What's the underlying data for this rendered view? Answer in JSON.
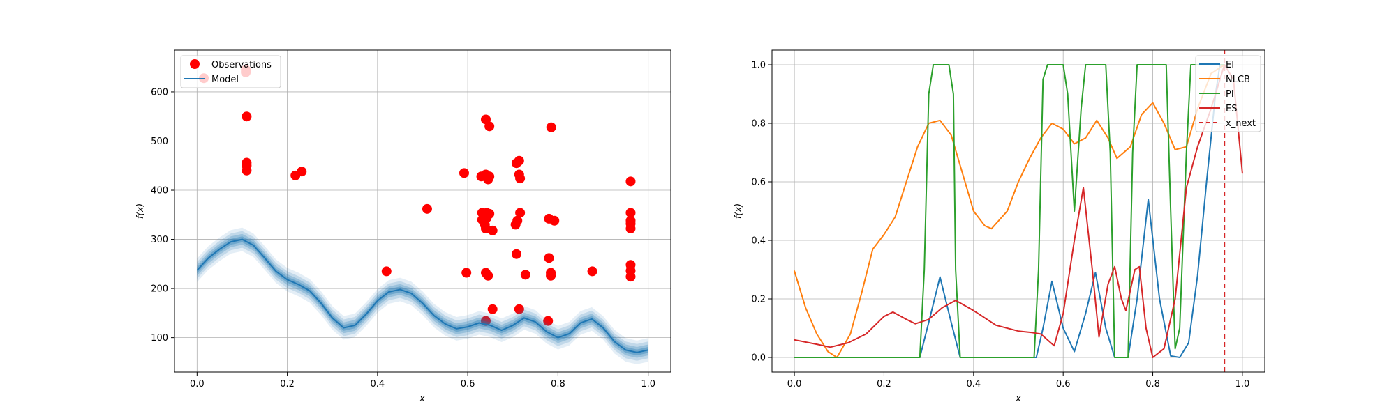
{
  "chart_data": [
    {
      "type": "scatter",
      "xlabel": "x",
      "ylabel": "f(x)",
      "xlim": [
        -0.05,
        1.05
      ],
      "ylim": [
        30,
        685
      ],
      "xticks": [
        "0.0",
        "0.2",
        "0.4",
        "0.6",
        "0.8",
        "1.0"
      ],
      "yticks": [
        "100",
        "200",
        "300",
        "400",
        "500",
        "600"
      ],
      "grid": true,
      "legend": "top-left",
      "colors": {
        "observations": "#ff0000",
        "model": "#1f77b4"
      },
      "series": [
        {
          "name": "Observations",
          "type": "scatter",
          "points": [
            [
              0.015,
              628
            ],
            [
              0.108,
              640
            ],
            [
              0.108,
              645
            ],
            [
              0.11,
              550
            ],
            [
              0.11,
              456
            ],
            [
              0.11,
              450
            ],
            [
              0.11,
              440
            ],
            [
              0.218,
              430
            ],
            [
              0.232,
              438
            ],
            [
              0.42,
              235
            ],
            [
              0.51,
              362
            ],
            [
              0.592,
              435
            ],
            [
              0.597,
              232
            ],
            [
              0.63,
              428
            ],
            [
              0.64,
              432
            ],
            [
              0.645,
              422
            ],
            [
              0.648,
              428
            ],
            [
              0.64,
              544
            ],
            [
              0.648,
              530
            ],
            [
              0.632,
              354
            ],
            [
              0.642,
              354
            ],
            [
              0.648,
              352
            ],
            [
              0.632,
              340
            ],
            [
              0.642,
              344
            ],
            [
              0.638,
              330
            ],
            [
              0.64,
              322
            ],
            [
              0.655,
              318
            ],
            [
              0.64,
              232
            ],
            [
              0.645,
              226
            ],
            [
              0.655,
              158
            ],
            [
              0.64,
              134
            ],
            [
              0.708,
              455
            ],
            [
              0.714,
              460
            ],
            [
              0.714,
              432
            ],
            [
              0.716,
              424
            ],
            [
              0.716,
              354
            ],
            [
              0.71,
              338
            ],
            [
              0.706,
              330
            ],
            [
              0.708,
              270
            ],
            [
              0.728,
              228
            ],
            [
              0.714,
              158
            ],
            [
              0.785,
              528
            ],
            [
              0.78,
              342
            ],
            [
              0.792,
              338
            ],
            [
              0.78,
              262
            ],
            [
              0.784,
              226
            ],
            [
              0.784,
              232
            ],
            [
              0.778,
              134
            ],
            [
              0.876,
              235
            ],
            [
              0.961,
              418
            ],
            [
              0.961,
              354
            ],
            [
              0.961,
              338
            ],
            [
              0.961,
              332
            ],
            [
              0.961,
              322
            ],
            [
              0.961,
              248
            ],
            [
              0.961,
              236
            ],
            [
              0.961,
              224
            ]
          ]
        },
        {
          "name": "Model",
          "type": "line",
          "points": [
            [
              0.0,
              237
            ],
            [
              0.025,
              262
            ],
            [
              0.05,
              280
            ],
            [
              0.075,
              295
            ],
            [
              0.1,
              300
            ],
            [
              0.125,
              288
            ],
            [
              0.15,
              262
            ],
            [
              0.175,
              235
            ],
            [
              0.2,
              218
            ],
            [
              0.225,
              208
            ],
            [
              0.25,
              195
            ],
            [
              0.275,
              170
            ],
            [
              0.3,
              140
            ],
            [
              0.325,
              120
            ],
            [
              0.35,
              125
            ],
            [
              0.375,
              148
            ],
            [
              0.4,
              175
            ],
            [
              0.425,
              193
            ],
            [
              0.45,
              198
            ],
            [
              0.475,
              190
            ],
            [
              0.5,
              170
            ],
            [
              0.525,
              145
            ],
            [
              0.55,
              128
            ],
            [
              0.575,
              118
            ],
            [
              0.6,
              122
            ],
            [
              0.625,
              130
            ],
            [
              0.65,
              125
            ],
            [
              0.675,
              115
            ],
            [
              0.7,
              125
            ],
            [
              0.725,
              140
            ],
            [
              0.75,
              132
            ],
            [
              0.775,
              112
            ],
            [
              0.8,
              100
            ],
            [
              0.825,
              108
            ],
            [
              0.85,
              130
            ],
            [
              0.875,
              138
            ],
            [
              0.9,
              120
            ],
            [
              0.925,
              92
            ],
            [
              0.95,
              75
            ],
            [
              0.975,
              70
            ],
            [
              1.0,
              75
            ]
          ]
        }
      ]
    },
    {
      "type": "line",
      "xlabel": "x",
      "ylabel": "f(x)",
      "xlim": [
        -0.05,
        1.05
      ],
      "ylim": [
        -0.05,
        1.05
      ],
      "xticks": [
        "0.0",
        "0.2",
        "0.4",
        "0.6",
        "0.8",
        "1.0"
      ],
      "yticks": [
        "0.0",
        "0.2",
        "0.4",
        "0.6",
        "0.8",
        "1.0"
      ],
      "grid": true,
      "legend": "top-right",
      "x_next": 0.96,
      "series": [
        {
          "name": "EI",
          "color": "#1f77b4",
          "points": [
            [
              0.0,
              0
            ],
            [
              0.28,
              0
            ],
            [
              0.3,
              0.12
            ],
            [
              0.325,
              0.275
            ],
            [
              0.35,
              0.12
            ],
            [
              0.37,
              0
            ],
            [
              0.54,
              0
            ],
            [
              0.555,
              0.1
            ],
            [
              0.575,
              0.26
            ],
            [
              0.6,
              0.1
            ],
            [
              0.625,
              0.02
            ],
            [
              0.65,
              0.15
            ],
            [
              0.672,
              0.29
            ],
            [
              0.695,
              0.1
            ],
            [
              0.715,
              0
            ],
            [
              0.745,
              0
            ],
            [
              0.765,
              0.2
            ],
            [
              0.79,
              0.54
            ],
            [
              0.815,
              0.2
            ],
            [
              0.84,
              0.005
            ],
            [
              0.86,
              0
            ],
            [
              0.88,
              0.05
            ],
            [
              0.9,
              0.28
            ],
            [
              0.92,
              0.6
            ],
            [
              0.94,
              0.9
            ],
            [
              0.95,
              1.0
            ],
            [
              0.96,
              1.0
            ]
          ]
        },
        {
          "name": "NLCB",
          "color": "#ff7f0e",
          "points": [
            [
              0.0,
              0.295
            ],
            [
              0.025,
              0.17
            ],
            [
              0.05,
              0.08
            ],
            [
              0.075,
              0.02
            ],
            [
              0.095,
              0.0
            ],
            [
              0.125,
              0.08
            ],
            [
              0.15,
              0.22
            ],
            [
              0.175,
              0.37
            ],
            [
              0.2,
              0.42
            ],
            [
              0.225,
              0.48
            ],
            [
              0.25,
              0.6
            ],
            [
              0.275,
              0.72
            ],
            [
              0.3,
              0.8
            ],
            [
              0.325,
              0.81
            ],
            [
              0.35,
              0.76
            ],
            [
              0.375,
              0.63
            ],
            [
              0.4,
              0.5
            ],
            [
              0.425,
              0.45
            ],
            [
              0.44,
              0.44
            ],
            [
              0.475,
              0.5
            ],
            [
              0.5,
              0.6
            ],
            [
              0.525,
              0.68
            ],
            [
              0.55,
              0.75
            ],
            [
              0.575,
              0.8
            ],
            [
              0.6,
              0.78
            ],
            [
              0.625,
              0.73
            ],
            [
              0.65,
              0.75
            ],
            [
              0.675,
              0.81
            ],
            [
              0.7,
              0.75
            ],
            [
              0.72,
              0.68
            ],
            [
              0.75,
              0.72
            ],
            [
              0.775,
              0.83
            ],
            [
              0.8,
              0.87
            ],
            [
              0.825,
              0.8
            ],
            [
              0.85,
              0.71
            ],
            [
              0.875,
              0.72
            ],
            [
              0.9,
              0.85
            ],
            [
              0.93,
              0.97
            ],
            [
              0.96,
              1.0
            ]
          ]
        },
        {
          "name": "PI",
          "color": "#2ca02c",
          "points": [
            [
              0.0,
              0
            ],
            [
              0.28,
              0
            ],
            [
              0.29,
              0.3
            ],
            [
              0.3,
              0.9
            ],
            [
              0.31,
              1
            ],
            [
              0.345,
              1
            ],
            [
              0.355,
              0.9
            ],
            [
              0.36,
              0.3
            ],
            [
              0.37,
              0
            ],
            [
              0.535,
              0
            ],
            [
              0.545,
              0.3
            ],
            [
              0.555,
              0.95
            ],
            [
              0.565,
              1
            ],
            [
              0.6,
              1
            ],
            [
              0.61,
              0.9
            ],
            [
              0.625,
              0.5
            ],
            [
              0.64,
              0.85
            ],
            [
              0.65,
              1
            ],
            [
              0.695,
              1
            ],
            [
              0.705,
              0.7
            ],
            [
              0.715,
              0
            ],
            [
              0.745,
              0
            ],
            [
              0.755,
              0.7
            ],
            [
              0.765,
              1
            ],
            [
              0.83,
              1
            ],
            [
              0.84,
              0.5
            ],
            [
              0.85,
              0.03
            ],
            [
              0.86,
              0.1
            ],
            [
              0.875,
              0.7
            ],
            [
              0.885,
              1
            ],
            [
              0.96,
              1
            ]
          ]
        },
        {
          "name": "ES",
          "color": "#d62728",
          "points": [
            [
              0.0,
              0.06
            ],
            [
              0.05,
              0.045
            ],
            [
              0.08,
              0.035
            ],
            [
              0.12,
              0.05
            ],
            [
              0.16,
              0.08
            ],
            [
              0.2,
              0.14
            ],
            [
              0.22,
              0.155
            ],
            [
              0.25,
              0.13
            ],
            [
              0.27,
              0.115
            ],
            [
              0.3,
              0.13
            ],
            [
              0.33,
              0.17
            ],
            [
              0.36,
              0.195
            ],
            [
              0.4,
              0.16
            ],
            [
              0.45,
              0.11
            ],
            [
              0.5,
              0.09
            ],
            [
              0.53,
              0.085
            ],
            [
              0.55,
              0.08
            ],
            [
              0.58,
              0.04
            ],
            [
              0.6,
              0.15
            ],
            [
              0.625,
              0.4
            ],
            [
              0.645,
              0.58
            ],
            [
              0.665,
              0.3
            ],
            [
              0.68,
              0.07
            ],
            [
              0.7,
              0.25
            ],
            [
              0.715,
              0.31
            ],
            [
              0.73,
              0.2
            ],
            [
              0.74,
              0.16
            ],
            [
              0.76,
              0.3
            ],
            [
              0.77,
              0.31
            ],
            [
              0.785,
              0.1
            ],
            [
              0.8,
              0.0
            ],
            [
              0.825,
              0.03
            ],
            [
              0.85,
              0.2
            ],
            [
              0.875,
              0.58
            ],
            [
              0.9,
              0.72
            ],
            [
              0.93,
              0.85
            ],
            [
              0.96,
              1.0
            ],
            [
              0.98,
              0.95
            ],
            [
              1.0,
              0.63
            ]
          ]
        },
        {
          "name": "x_next",
          "color": "#d62728",
          "style": "dashed",
          "points": [
            [
              0.96,
              -0.05
            ],
            [
              0.96,
              1.05
            ]
          ]
        }
      ]
    }
  ]
}
